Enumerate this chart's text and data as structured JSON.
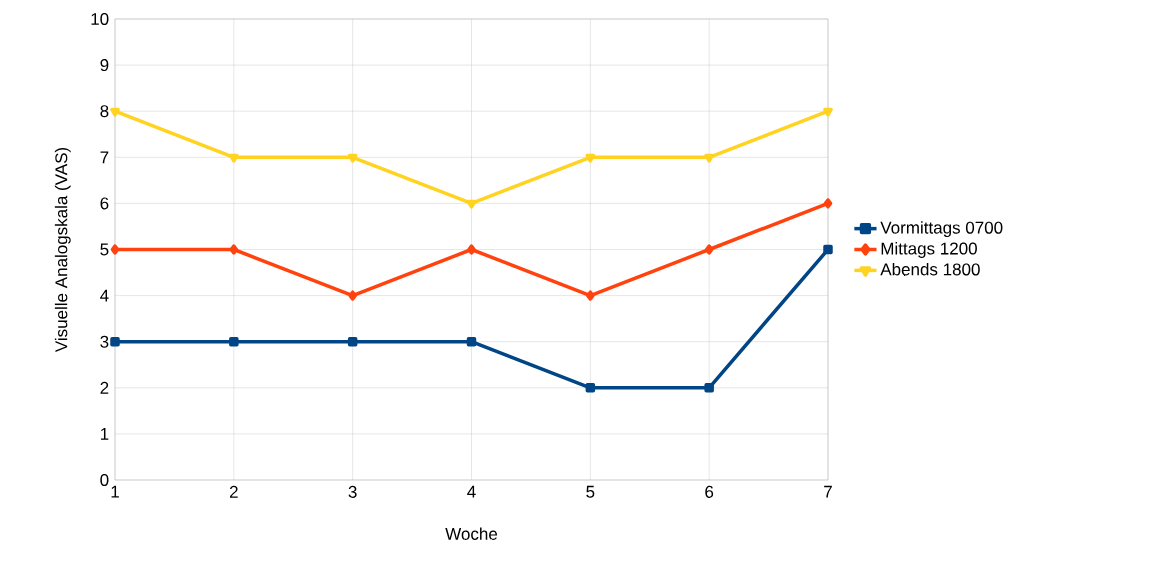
{
  "chart_data": {
    "type": "line",
    "xlabel": "Woche",
    "ylabel": "Visuelle Analogskala (VAS)",
    "x": [
      1,
      2,
      3,
      4,
      5,
      6,
      7
    ],
    "series": [
      {
        "name": "Vormittags 0700",
        "color": "#004586",
        "marker": "square",
        "values": [
          3,
          3,
          3,
          3,
          2,
          2,
          5
        ]
      },
      {
        "name": "Mittags 1200",
        "color": "#ff420e",
        "marker": "diamond",
        "values": [
          5,
          5,
          4,
          5,
          4,
          5,
          6
        ]
      },
      {
        "name": "Abends 1800",
        "color": "#ffd320",
        "marker": "triangle",
        "values": [
          8,
          7,
          7,
          6,
          7,
          7,
          8
        ]
      }
    ],
    "xlim": [
      1,
      7
    ],
    "xticks": [
      1,
      2,
      3,
      4,
      5,
      6,
      7
    ],
    "ylim": [
      0,
      10
    ],
    "yticks": [
      0,
      1,
      2,
      3,
      4,
      5,
      6,
      7,
      8,
      9,
      10
    ],
    "grid": true,
    "legend": "right",
    "line_style": "solid"
  }
}
